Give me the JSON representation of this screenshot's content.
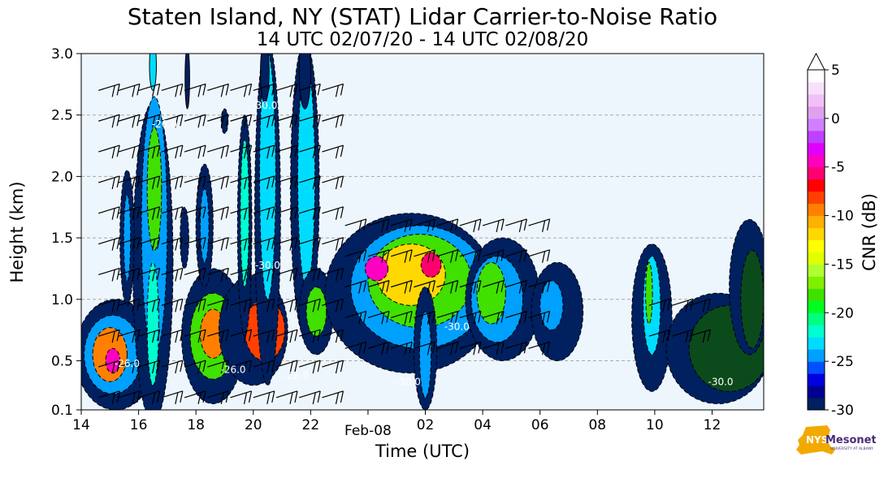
{
  "title": "Staten Island, NY (STAT) Lidar Carrier-to-Noise Ratio",
  "subtitle": "14 UTC 02/07/20 - 14 UTC 02/08/20",
  "logo": {
    "main": "NYS",
    "word": "Mesonet",
    "sub": "UNIVERSITY AT ALBANY"
  },
  "colors": {
    "background": "#eef6fd",
    "contour_line": "#000000",
    "dashed_contour": "#1a1a1a",
    "logo_state": "#f2a900",
    "logo_text": "#4a2a7a"
  },
  "chart_data": {
    "type": "heatmap",
    "title": "Staten Island, NY (STAT) Lidar Carrier-to-Noise Ratio",
    "subtitle": "14 UTC 02/07/20 - 14 UTC 02/08/20",
    "xlabel": "Time (UTC)",
    "ylabel": "Height (km)",
    "xlim": [
      14,
      37.8
    ],
    "ylim": [
      0.1,
      3.0
    ],
    "x_ticks": [
      {
        "x": 14,
        "label": "14"
      },
      {
        "x": 16,
        "label": "16"
      },
      {
        "x": 18,
        "label": "18"
      },
      {
        "x": 20,
        "label": "20"
      },
      {
        "x": 22,
        "label": "22"
      },
      {
        "x": 24,
        "label": "Feb-08"
      },
      {
        "x": 26,
        "label": "02"
      },
      {
        "x": 28,
        "label": "04"
      },
      {
        "x": 30,
        "label": "06"
      },
      {
        "x": 32,
        "label": "08"
      },
      {
        "x": 34,
        "label": "10"
      },
      {
        "x": 36,
        "label": "12"
      }
    ],
    "y_ticks": [
      0.1,
      0.5,
      1.0,
      1.5,
      2.0,
      2.5,
      3.0
    ],
    "y_tick_labels": [
      "0.1",
      "0.5",
      "1.0",
      "1.5",
      "2.0",
      "2.5",
      "3.0"
    ],
    "grid": "horizontal dashed",
    "colorbar": {
      "label": "CNR (dB)",
      "min": -30,
      "max": 5,
      "extend": "max",
      "ticks": [
        5,
        0,
        -5,
        -10,
        -15,
        -20,
        -25,
        -30
      ],
      "tick_labels": [
        "5",
        "0",
        "-5",
        "-10",
        "-15",
        "-20",
        "-25",
        "-30"
      ],
      "colors": [
        "#002060",
        "#000090",
        "#0000e0",
        "#0050ff",
        "#00a0ff",
        "#00dcff",
        "#00ffd0",
        "#00ff80",
        "#00ff20",
        "#40e000",
        "#80f000",
        "#b0ff30",
        "#e0ff00",
        "#ffff00",
        "#ffd800",
        "#ffb000",
        "#ff8000",
        "#ff4000",
        "#ff0000",
        "#ff0070",
        "#ff00c0",
        "#e000ff",
        "#c040ff",
        "#d080ff",
        "#e0a0f0",
        "#f0c0f8",
        "#f8e0fc",
        "#ffffff"
      ]
    },
    "contour_labels": [
      "-26.0",
      "-26.0",
      "-30.0",
      "-26.0",
      "-30.0",
      "-26.0",
      "-30.0",
      "-30.0",
      "-30.0"
    ]
  }
}
